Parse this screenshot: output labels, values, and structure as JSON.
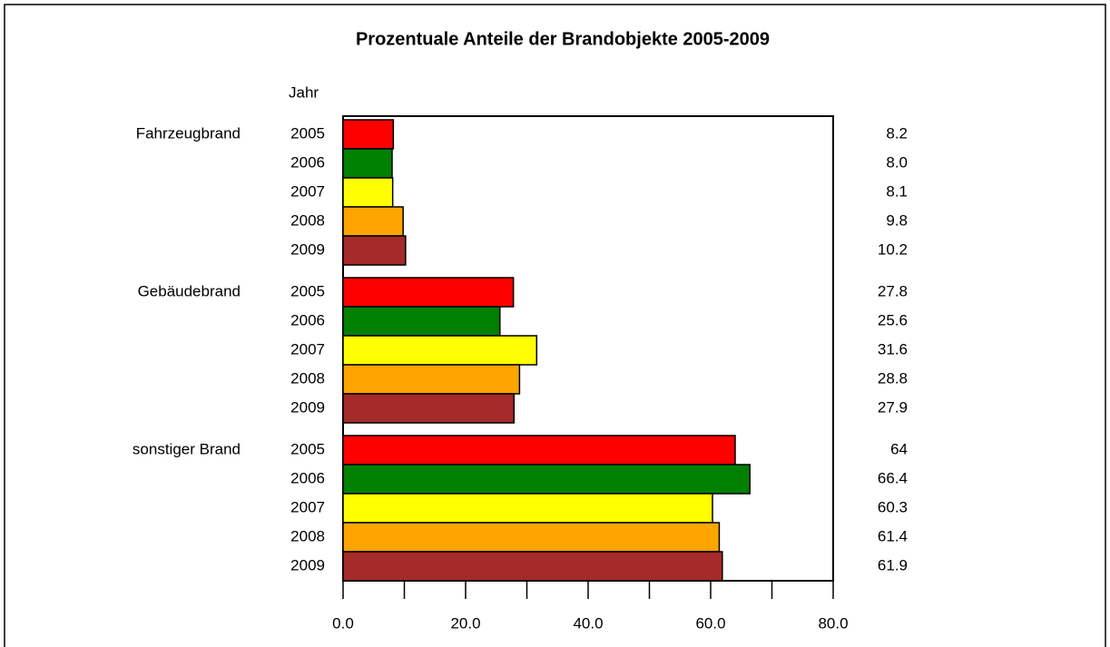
{
  "chart_data": {
    "type": "grouped-hbar",
    "title": "Prozentuale Anteile der Brandobjekte 2005-2009",
    "row_header": "Jahr",
    "categories": [
      "Fahrzeugbrand",
      "Gebäudebrand",
      "sonstiger Brand"
    ],
    "series": [
      {
        "name": "2005",
        "color": "#ff0000",
        "values": [
          8.2,
          27.8,
          64.0
        ]
      },
      {
        "name": "2006",
        "color": "#008000",
        "values": [
          8.0,
          25.6,
          66.4
        ],
        "value_labels": [
          "8.0",
          "25.6",
          "66.4"
        ]
      },
      {
        "name": "2007",
        "color": "#ffff00",
        "values": [
          8.1,
          31.6,
          60.3
        ]
      },
      {
        "name": "2008",
        "color": "#ffa500",
        "values": [
          9.8,
          28.8,
          61.4
        ]
      },
      {
        "name": "2009",
        "color": "#a52a2a",
        "values": [
          10.2,
          27.9,
          61.9
        ]
      }
    ],
    "xlim": [
      0,
      80
    ],
    "xticks": [
      {
        "value": 0,
        "label": "0.0"
      },
      {
        "value": 20,
        "label": "20.0"
      },
      {
        "value": 40,
        "label": "40.0"
      },
      {
        "value": 60,
        "label": "60.0"
      },
      {
        "value": 80,
        "label": "80.0"
      }
    ],
    "minor_xticks": [
      10,
      30,
      50,
      70
    ]
  }
}
